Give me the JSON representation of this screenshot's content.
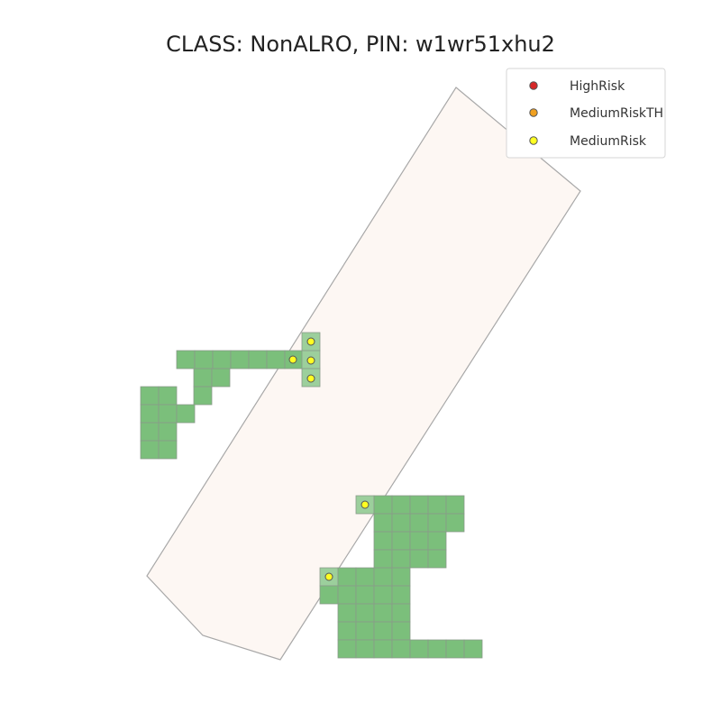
{
  "title": "CLASS: NonALRO, PIN: w1wr51xhu2",
  "legend": {
    "placement": "top-right",
    "items": [
      {
        "label": "HighRisk",
        "color": "#d62728"
      },
      {
        "label": "MediumRiskTH",
        "color": "#f0a020"
      },
      {
        "label": "MediumRisk",
        "color": "#ffff22"
      }
    ]
  },
  "colors": {
    "parcel_fill": "#fdf7f3",
    "parcel_stroke": "#a8a8a8",
    "cell_fill": "#7bbf7b",
    "cell_fill_light": "#9ccf9c",
    "cell_stroke": "#8a9a8a",
    "point_stroke": "#555555"
  }
}
